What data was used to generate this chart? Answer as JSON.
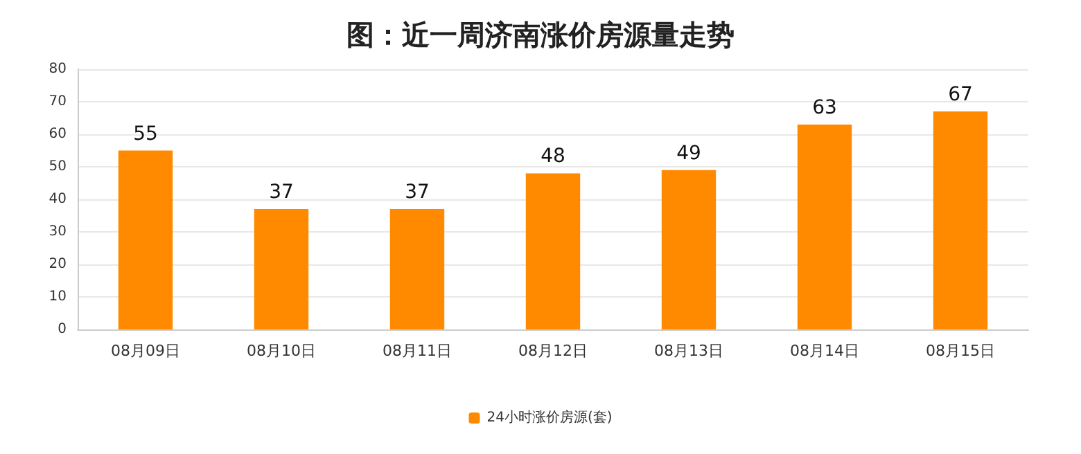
{
  "chart_data": {
    "type": "bar",
    "title": "图：近一周济南涨价房源量走势",
    "categories": [
      "08月09日",
      "08月10日",
      "08月11日",
      "08月12日",
      "08月13日",
      "08月14日",
      "08月15日"
    ],
    "series": [
      {
        "name": "24小时涨价房源(套)",
        "color": "#ff8a00",
        "values": [
          55,
          37,
          37,
          48,
          49,
          63,
          67
        ]
      }
    ],
    "ylim": [
      0,
      80
    ],
    "yticks": [
      0,
      10,
      20,
      30,
      40,
      50,
      60,
      70,
      80
    ],
    "grid": "y",
    "legend": "bottom",
    "data_labels": true
  }
}
